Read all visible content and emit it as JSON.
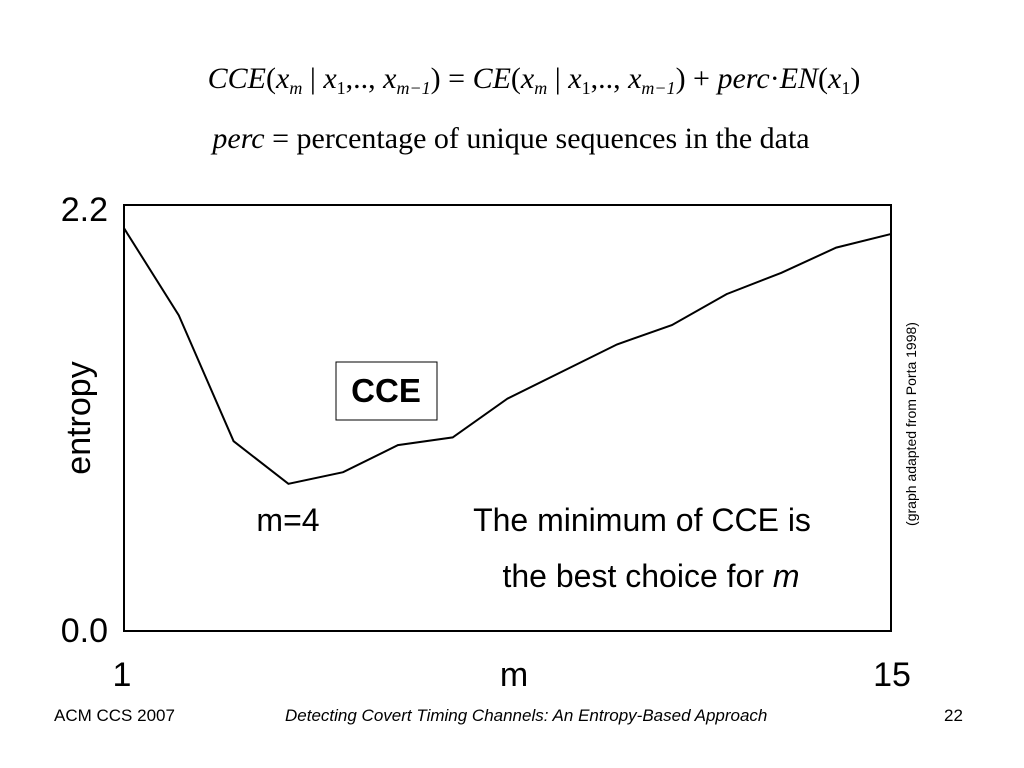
{
  "formula": {
    "line1": "CCE(x_m | x_1,.., x_{m-1}) = CE(x_m | x_1,.., x_{m-1}) + perc · EN(x_1)",
    "line2_lhs": "perc",
    "line2_eq": "=",
    "line2_rhs": "percentage of unique sequences in the data"
  },
  "chart_data": {
    "type": "line",
    "x": [
      1,
      2,
      3,
      4,
      5,
      6,
      7,
      8,
      9,
      10,
      11,
      12,
      13,
      14,
      15
    ],
    "series": [
      {
        "name": "CCE",
        "values": [
          2.08,
          1.63,
          0.98,
          0.76,
          0.82,
          0.96,
          1.0,
          1.2,
          1.34,
          1.48,
          1.58,
          1.74,
          1.85,
          1.98,
          2.05
        ]
      }
    ],
    "ylim": [
      0.0,
      2.2
    ],
    "xlim": [
      1,
      15
    ],
    "ytick_labels": [
      "0.0",
      "2.2"
    ],
    "xtick_labels": [
      "1",
      "15"
    ],
    "xlabel": "m",
    "ylabel": "entropy",
    "grid": false,
    "legend_box_label": "CCE",
    "annotations": {
      "minimum_label": "m=4",
      "note_line1": "The minimum of CCE is",
      "note_line2_prefix": "the best choice for ",
      "note_line2_var": "m"
    },
    "source_note": "(graph adapted from Porta 1998)"
  },
  "footer": {
    "left": "ACM CCS 2007",
    "center": "Detecting Covert Timing Channels: An Entropy-Based Approach",
    "page": "22"
  },
  "colors": {
    "line": "#000000",
    "background": "#ffffff"
  }
}
